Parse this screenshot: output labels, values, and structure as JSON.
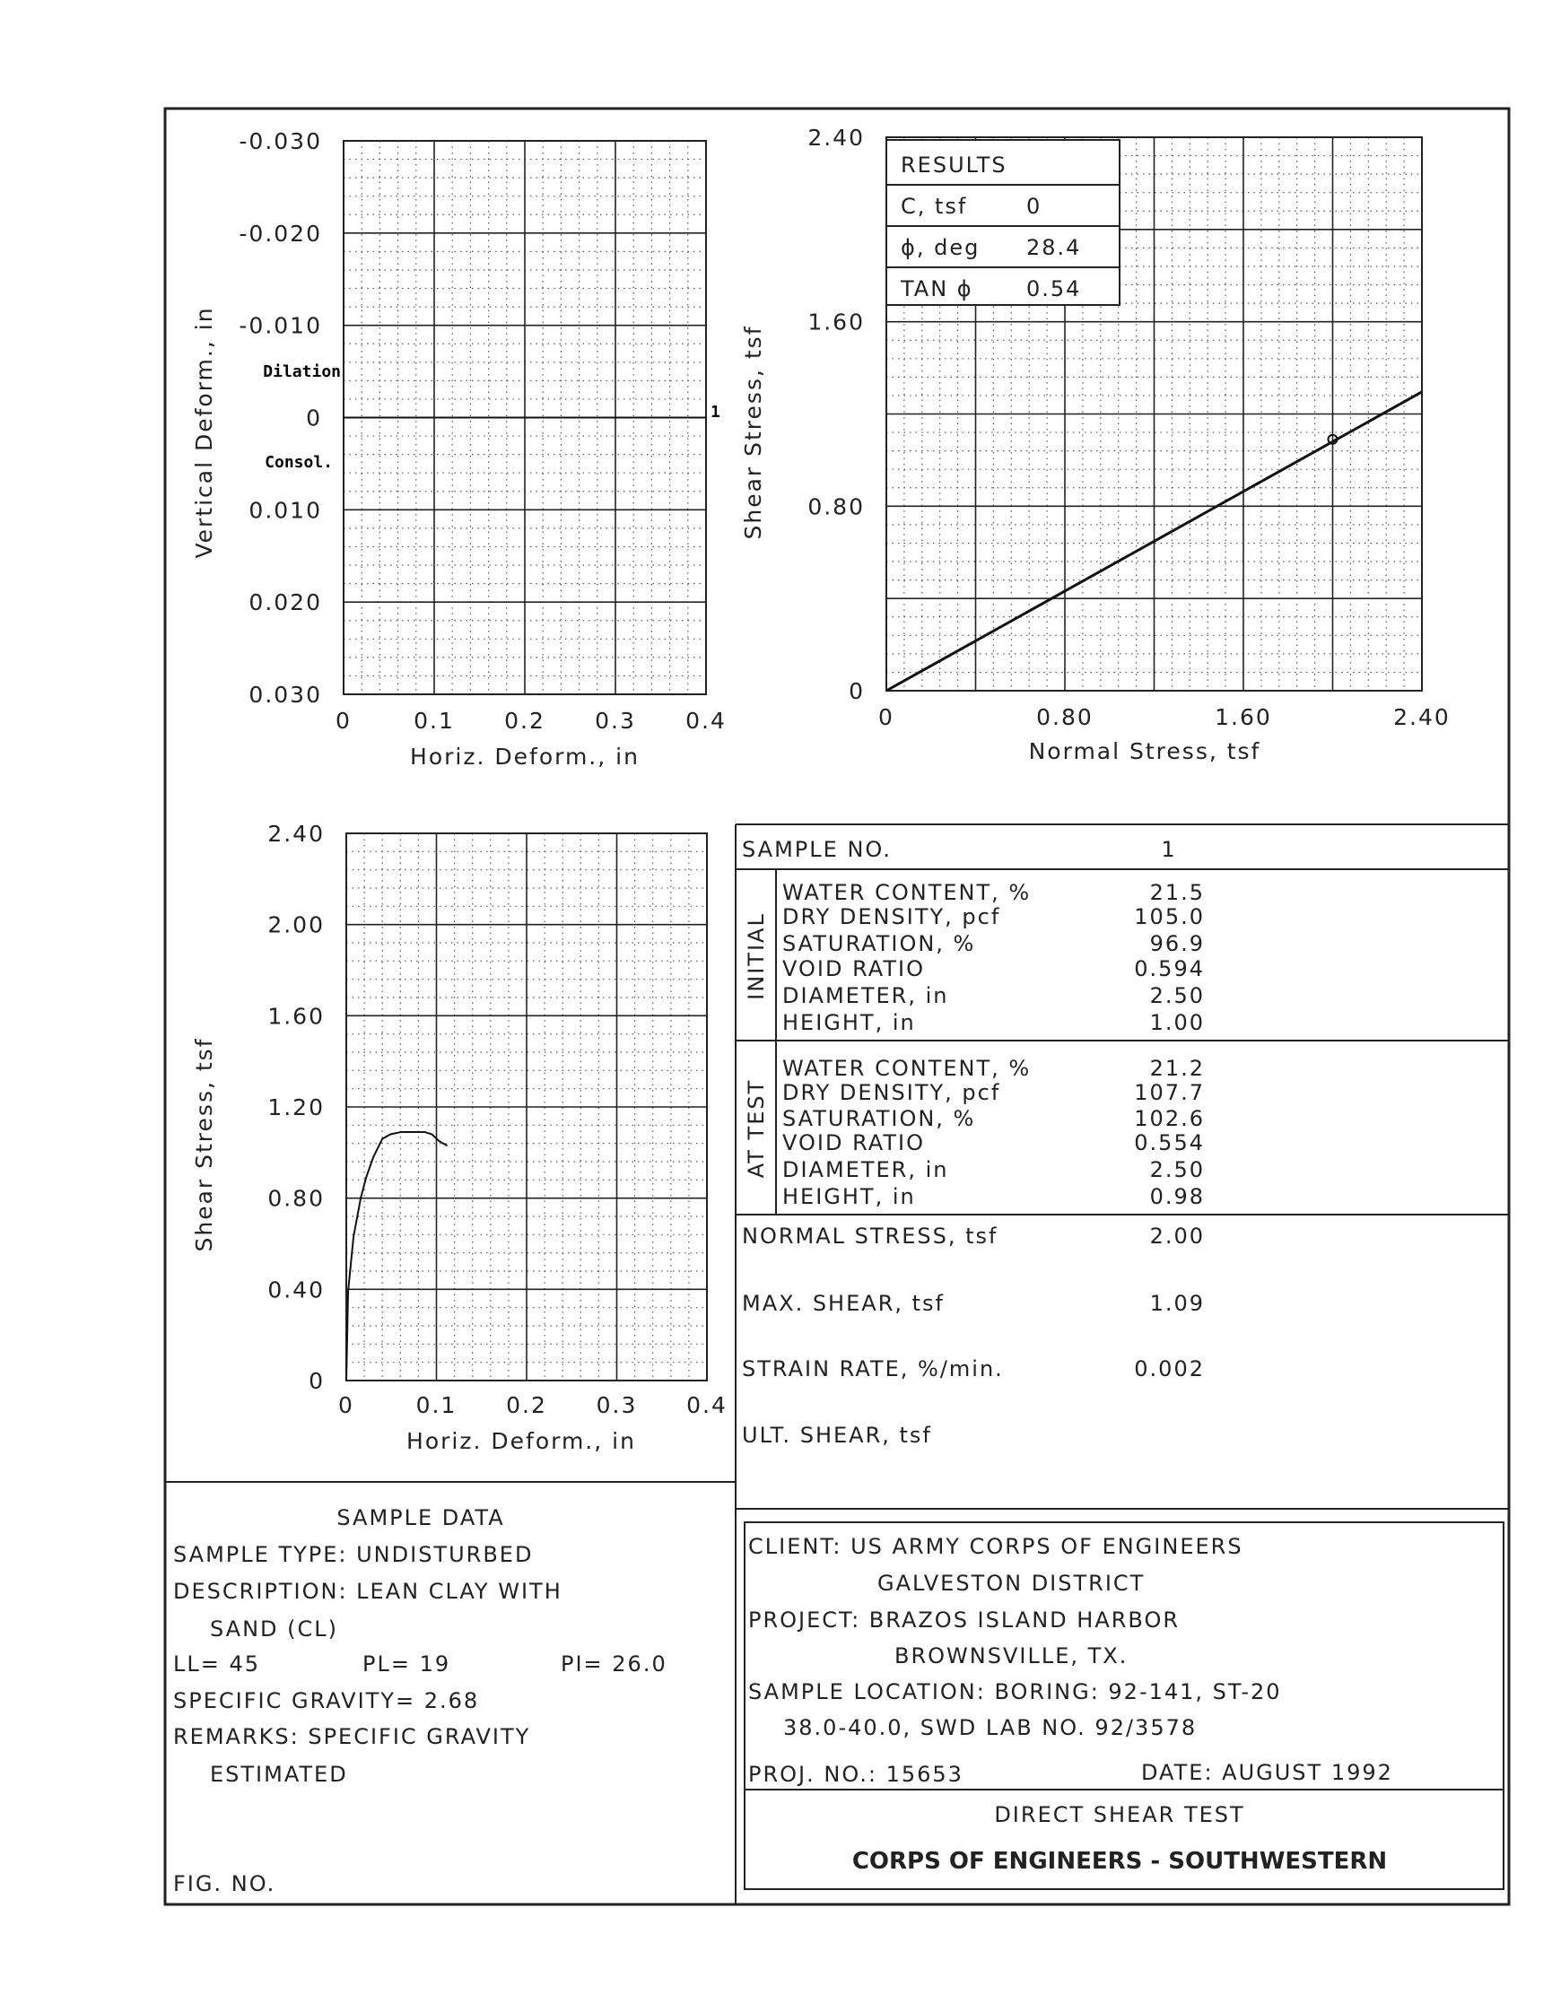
{
  "chart_data": [
    {
      "type": "line",
      "xlabel": "Horiz. Deform., in",
      "ylabel": "Vertical Deform., in",
      "xlim": [
        0,
        0.4
      ],
      "ylim": [
        -0.03,
        0.03
      ],
      "y_inverted": true,
      "x_ticks": [
        "0",
        "0.1",
        "0.2",
        "0.3",
        "0.4"
      ],
      "y_ticks": [
        "-0.030",
        "-0.020",
        "-0.010",
        "0",
        "0.010",
        "0.020",
        "0.030"
      ],
      "annotations": {
        "dilation": "Dilation",
        "consol": "Consol.",
        "curve_label": "1"
      },
      "series": [
        {
          "x": [
            0,
            0.4
          ],
          "y": [
            0,
            0
          ]
        }
      ],
      "grid": true
    },
    {
      "type": "line",
      "xlabel": "Normal Stress,  tsf",
      "ylabel": "Shear Stress, tsf",
      "xlim": [
        0,
        2.4
      ],
      "ylim": [
        0,
        2.4
      ],
      "x_ticks": [
        "0",
        "0.80",
        "1.60",
        "2.40"
      ],
      "y_ticks": [
        "0",
        "0.80",
        "1.60",
        "2.40"
      ],
      "envelope": {
        "x": [
          0,
          2.4
        ],
        "y": [
          0,
          1.296
        ]
      },
      "points": [
        {
          "x": 2.0,
          "y": 1.09
        }
      ],
      "grid": true,
      "results": {
        "title": "RESULTS",
        "rows": [
          {
            "label": "C,  tsf",
            "value": "0"
          },
          {
            "label": "ϕ,  deg",
            "value": "28.4"
          },
          {
            "label": "TAN ϕ",
            "value": "0.54"
          }
        ]
      }
    },
    {
      "type": "line",
      "xlabel": "Horiz. Deform.,   in",
      "ylabel": "Shear Stress, tsf",
      "xlim": [
        0,
        0.4
      ],
      "ylim": [
        0,
        2.4
      ],
      "x_ticks": [
        "0",
        "0.1",
        "0.2",
        "0.3",
        "0.4"
      ],
      "y_ticks": [
        "0",
        "0.40",
        "0.80",
        "1.20",
        "1.60",
        "2.00",
        "2.40"
      ],
      "series": [
        {
          "x": [
            0,
            0.002,
            0.008,
            0.016,
            0.022,
            0.03,
            0.04,
            0.049,
            0.061,
            0.087,
            0.095,
            0.103,
            0.112
          ],
          "y": [
            0,
            0.39,
            0.63,
            0.8,
            0.89,
            0.98,
            1.06,
            1.08,
            1.09,
            1.09,
            1.08,
            1.05,
            1.03
          ]
        }
      ],
      "grid": true
    }
  ],
  "table": {
    "sample_no_label": "SAMPLE NO.",
    "sample_no": "1",
    "initial_label": "INITIAL",
    "at_test_label": "AT TEST",
    "initial": [
      {
        "label": "WATER CONTENT, %",
        "value": "21.5"
      },
      {
        "label": "DRY DENSITY, pcf",
        "value": "105.0"
      },
      {
        "label": "SATURATION, %",
        "value": "96.9"
      },
      {
        "label": "VOID RATIO",
        "value": "0.594"
      },
      {
        "label": "DIAMETER, in",
        "value": "2.50"
      },
      {
        "label": "HEIGHT, in",
        "value": "1.00"
      }
    ],
    "at_test": [
      {
        "label": "WATER CONTENT, %",
        "value": "21.2"
      },
      {
        "label": "DRY DENSITY, pcf",
        "value": "107.7"
      },
      {
        "label": "SATURATION, %",
        "value": "102.6"
      },
      {
        "label": "VOID RATIO",
        "value": "0.554"
      },
      {
        "label": "DIAMETER, in",
        "value": "2.50"
      },
      {
        "label": "HEIGHT, in",
        "value": "0.98"
      }
    ],
    "normal_stress_label": "NORMAL STRESS, tsf",
    "normal_stress": "2.00",
    "max_shear_label": "MAX. SHEAR, tsf",
    "max_shear": "1.09",
    "strain_rate_label": "STRAIN RATE, %/min.",
    "strain_rate": "0.002",
    "ult_shear_label": "ULT. SHEAR, tsf"
  },
  "sample_data": {
    "title": "SAMPLE DATA",
    "sample_type": "SAMPLE TYPE:  UNDISTURBED",
    "description": "DESCRIPTION:  LEAN CLAY WITH",
    "description2": "SAND  (CL)",
    "ll": "LL= 45",
    "pl": "PL= 19",
    "pi": "PI= 26.0",
    "specific_gravity": "SPECIFIC GRAVITY= 2.68",
    "remarks": "REMARKS:  SPECIFIC GRAVITY",
    "remarks2": "ESTIMATED",
    "fig_no": "FIG. NO."
  },
  "title_block": {
    "client": "CLIENT:  US ARMY CORPS OF ENGINEERS",
    "client2": "GALVESTON DISTRICT",
    "project": "PROJECT:  BRAZOS ISLAND HARBOR",
    "project2": "BROWNSVILLE,  TX.",
    "location": "SAMPLE LOCATION:  BORING:  92-141,  ST-20",
    "location2": "38.0-40.0,  SWD LAB NO.  92/3578",
    "proj_no": "PROJ. NO.:  15653",
    "date": "DATE:  AUGUST 1992",
    "test_name": "DIRECT SHEAR TEST",
    "organization": "CORPS OF ENGINEERS - SOUTHWESTERN"
  }
}
